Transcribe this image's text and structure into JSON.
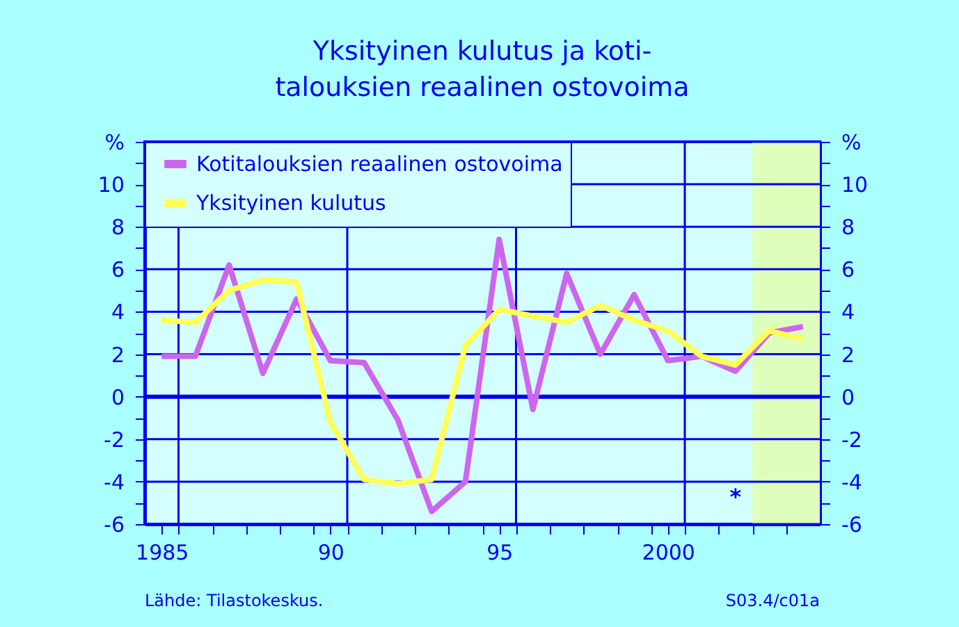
{
  "chart_data": {
    "type": "line",
    "title": "Yksityinen kulutus ja koti-\ntalouksien reaalinen ostovoima",
    "x": [
      1985,
      1986,
      1987,
      1988,
      1989,
      1990,
      1991,
      1992,
      1993,
      1994,
      1995,
      1996,
      1997,
      1998,
      1999,
      2000,
      2001,
      2002,
      2003,
      2004
    ],
    "series": [
      {
        "name": "Kotitalouksien reaalinen ostovoima",
        "color": "#cc66ee",
        "values": [
          1.9,
          1.9,
          6.2,
          1.1,
          4.6,
          1.7,
          1.6,
          -1.1,
          -5.4,
          -4.0,
          7.4,
          -0.6,
          5.8,
          2.0,
          4.8,
          1.7,
          1.9,
          1.2,
          3.0,
          3.3
        ]
      },
      {
        "name": "Yksityinen kulutus",
        "color": "#ffff55",
        "values": [
          3.6,
          3.5,
          5.0,
          5.5,
          5.4,
          -1.2,
          -3.9,
          -4.1,
          -3.9,
          2.4,
          4.1,
          3.8,
          3.5,
          4.3,
          3.6,
          3.1,
          1.9,
          1.5,
          3.1,
          2.7
        ]
      }
    ],
    "xlim": [
      1984.5,
      2004.5
    ],
    "xticks": [
      1985,
      {
        "value": 1985.5,
        "label": null
      },
      {
        "value": 1986.5,
        "label": null
      },
      {
        "value": 1987.5,
        "label": null
      },
      {
        "value": 1988.5,
        "label": null
      },
      {
        "value": 1989.5,
        "label": null
      },
      {
        "value": 1990,
        "label": "90"
      },
      {
        "value": 1990.5,
        "label": null
      },
      {
        "value": 1991.5,
        "label": null
      },
      {
        "value": 1992.5,
        "label": null
      },
      {
        "value": 1993.5,
        "label": null
      },
      {
        "value": 1994.5,
        "label": null
      },
      {
        "value": 1995,
        "label": "95"
      },
      {
        "value": 1995.5,
        "label": null
      },
      {
        "value": 1996.5,
        "label": null
      },
      {
        "value": 1997.5,
        "label": null
      },
      {
        "value": 1998.5,
        "label": null
      },
      {
        "value": 1999.5,
        "label": null
      },
      2000,
      {
        "value": 2000.5,
        "label": null
      },
      {
        "value": 2001.5,
        "label": null
      },
      {
        "value": 2002.5,
        "label": null
      },
      {
        "value": 2003.5,
        "label": null
      }
    ],
    "ylim": [
      -6,
      12
    ],
    "yticks": [
      -6,
      {
        "value": -5,
        "label": null
      },
      -4,
      {
        "value": -3,
        "label": null
      },
      -2,
      {
        "value": -1,
        "label": null
      },
      0,
      {
        "value": 1,
        "label": null
      },
      2,
      {
        "value": 3,
        "label": null
      },
      4,
      {
        "value": 5,
        "label": null
      },
      6,
      {
        "value": 7,
        "label": null
      },
      8,
      {
        "value": 9,
        "label": null
      },
      10,
      {
        "value": 11,
        "label": null
      },
      {
        "value": 12,
        "label": "%"
      }
    ],
    "y2lim": [
      -6,
      12
    ],
    "y2ticks": [
      -6,
      {
        "value": -5,
        "label": null
      },
      -4,
      {
        "value": -3,
        "label": null
      },
      -2,
      {
        "value": -1,
        "label": null
      },
      0,
      {
        "value": 1,
        "label": null
      },
      2,
      {
        "value": 3,
        "label": null
      },
      4,
      {
        "value": 5,
        "label": null
      },
      6,
      {
        "value": 7,
        "label": null
      },
      8,
      {
        "value": 9,
        "label": null
      },
      10,
      {
        "value": 11,
        "label": null
      },
      {
        "value": 12,
        "label": "%"
      }
    ],
    "grid": true,
    "legend": "top left",
    "ref_lines": [
      {
        "axis": "y",
        "value": 0,
        "color": "#0000ee"
      }
    ],
    "bands": [
      {
        "axis": "x",
        "from": 2002.5,
        "to": 2004.5,
        "color": "#ddffbb"
      }
    ],
    "annotations": [
      "Lähde:   Tilastokeskus.",
      "S03.4/c01a",
      "*"
    ]
  }
}
